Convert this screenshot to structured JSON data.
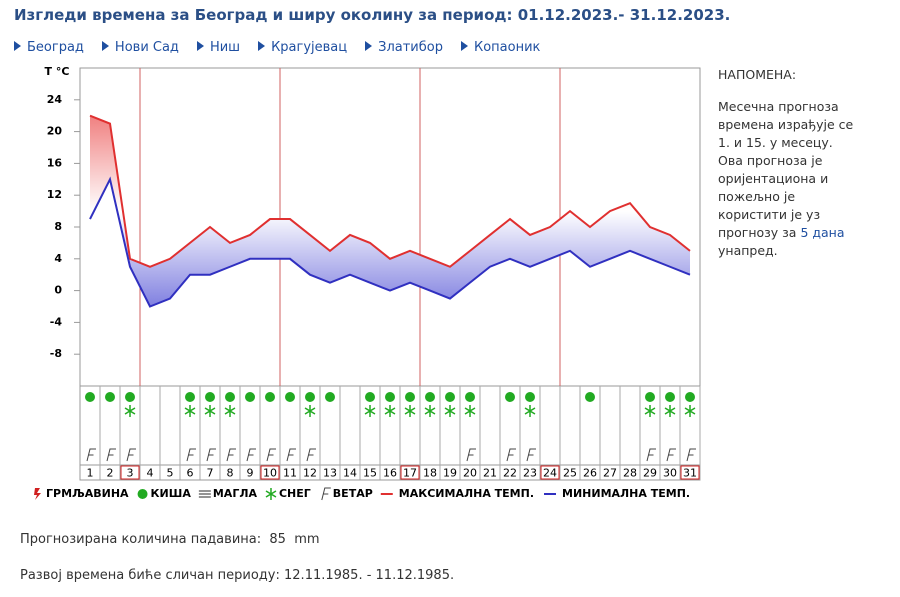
{
  "header": {
    "title": "Изгледи времена за Београд и ширу околину за период: 01.12.2023.- 31.12.2023."
  },
  "nav": [
    "Београд",
    "Нови Сад",
    "Ниш",
    "Крагујевац",
    "Златибор",
    "Копаоник"
  ],
  "chart_data": {
    "type": "line",
    "y_label": "T °C",
    "x": [
      1,
      2,
      3,
      4,
      5,
      6,
      7,
      8,
      9,
      10,
      11,
      12,
      13,
      14,
      15,
      16,
      17,
      18,
      19,
      20,
      21,
      22,
      23,
      24,
      25,
      26,
      27,
      28,
      29,
      30,
      31
    ],
    "series": [
      {
        "name": "МАКСИМАЛНА ТЕМП.",
        "color": "#e03030",
        "values": [
          22,
          21,
          4,
          3,
          4,
          6,
          8,
          6,
          7,
          9,
          9,
          7,
          5,
          7,
          6,
          4,
          5,
          4,
          3,
          5,
          7,
          9,
          7,
          8,
          10,
          8,
          10,
          11,
          8,
          7,
          5
        ]
      },
      {
        "name": "МИНИМАЛНА ТЕМП.",
        "color": "#3030c0",
        "values": [
          9,
          14,
          3,
          -2,
          -1,
          2,
          2,
          3,
          4,
          4,
          4,
          2,
          1,
          2,
          1,
          0,
          1,
          0,
          -1,
          1,
          3,
          4,
          3,
          4,
          5,
          3,
          4,
          5,
          4,
          3,
          2
        ]
      }
    ],
    "xlim": [
      0.5,
      31.5
    ],
    "ylim": [
      -12,
      28
    ],
    "yticks": [
      -8,
      -4,
      0,
      4,
      8,
      12,
      16,
      20,
      24
    ],
    "highlighted_days": [
      3,
      10,
      17,
      24,
      31
    ],
    "weather": [
      {
        "name": "ГРМЉАВИНА",
        "days": []
      },
      {
        "name": "КИША",
        "days": [
          1,
          2,
          3,
          6,
          7,
          8,
          9,
          10,
          11,
          12,
          13,
          15,
          16,
          17,
          18,
          19,
          20,
          22,
          23,
          26,
          29,
          30,
          31
        ]
      },
      {
        "name": "МАГЛА",
        "days": []
      },
      {
        "name": "СНЕГ",
        "days": [
          3,
          6,
          7,
          8,
          12,
          15,
          16,
          17,
          18,
          19,
          20,
          23,
          29,
          30,
          31
        ]
      },
      {
        "name": "ВЕТАР",
        "days": [
          1,
          2,
          3,
          6,
          7,
          8,
          9,
          10,
          11,
          12,
          20,
          22,
          23,
          29,
          30,
          31
        ]
      }
    ]
  },
  "note": {
    "title": "НАПОМЕНА:",
    "text": "Месечна прогноза времена израђује се 1. и 15. у месецу. Ова прогноза је оријентациона и пожељно је користити је уз прогнозу за",
    "link": "5 дана",
    "text_end": "унапред."
  },
  "footer": {
    "precip_label": "Прогнозирана количина падавина:",
    "precip_value": 85,
    "precip_unit": "mm",
    "similar_label": "Развој времена биће сличан периоду:",
    "similar_period": "12.11.1985. - 11.12.1985."
  }
}
